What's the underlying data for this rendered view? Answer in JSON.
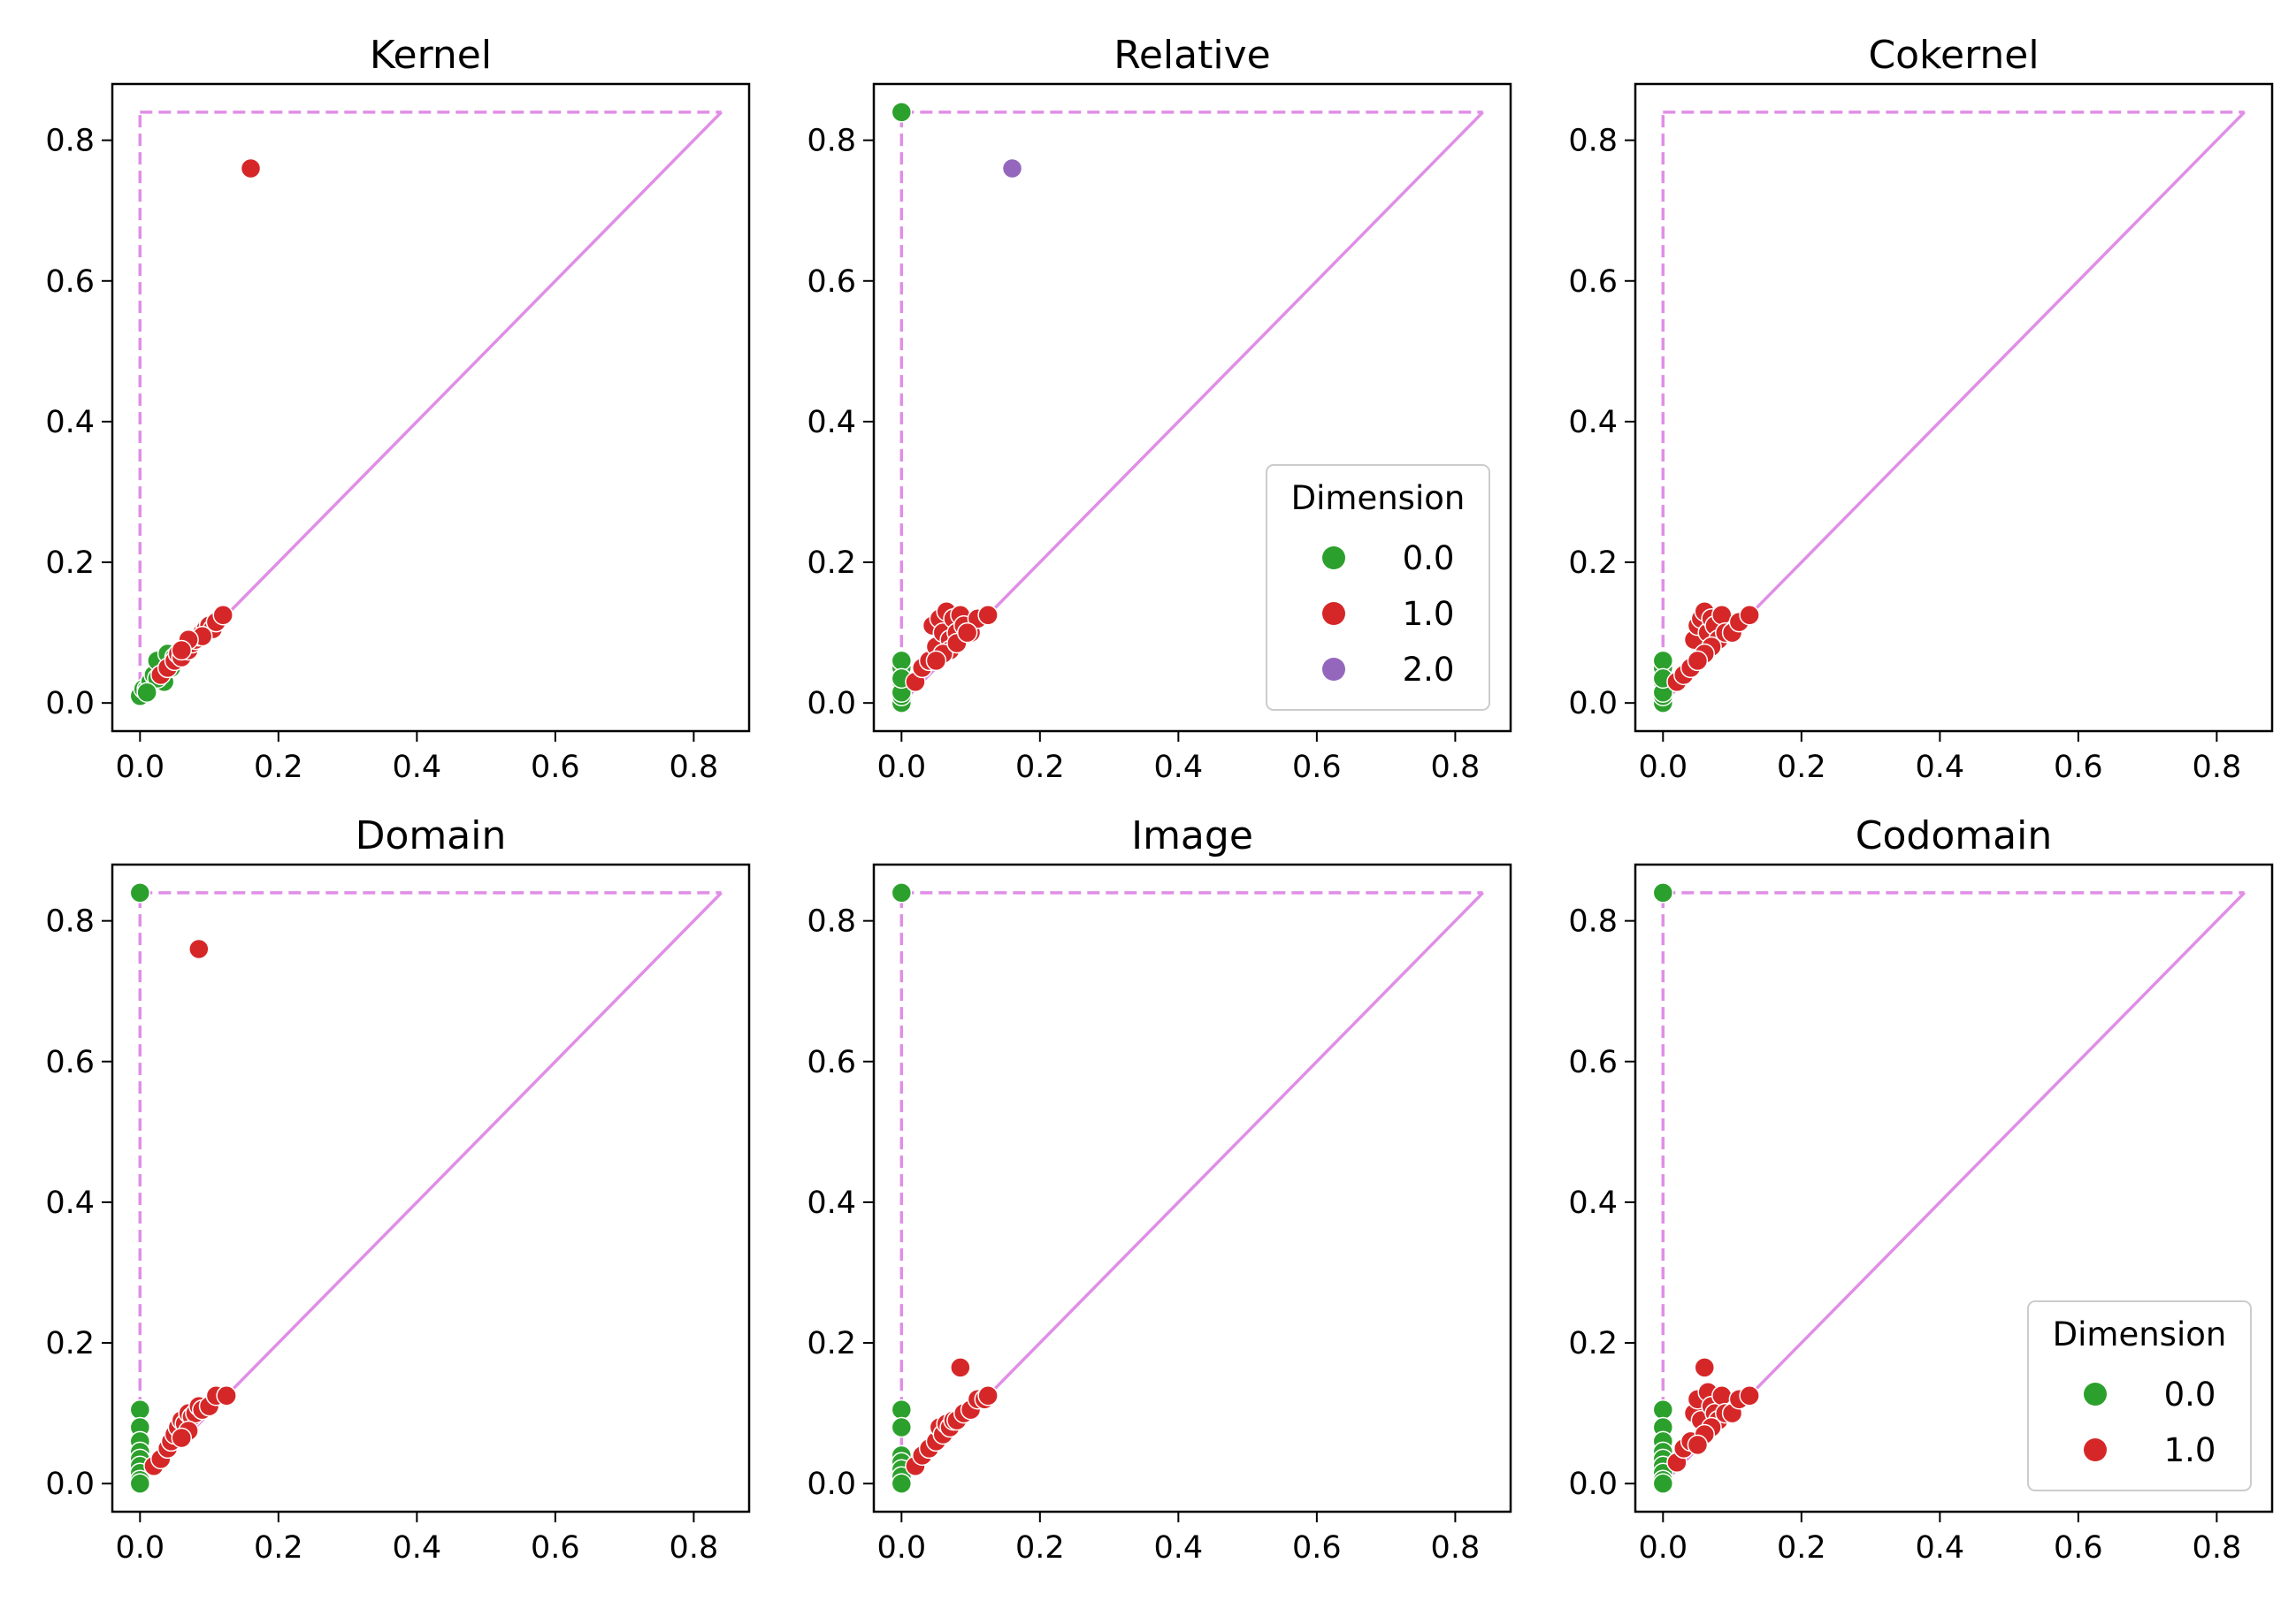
{
  "figure": {
    "colors": {
      "dim0": "#2ca02c",
      "dim1": "#d62728",
      "dim2": "#9467bd",
      "reference": "#e08ee6",
      "axis": "#000000"
    },
    "axis_limits": {
      "xlim": [
        -0.04,
        0.88
      ],
      "ylim": [
        -0.04,
        0.88
      ]
    }
  },
  "chart_data": [
    {
      "type": "scatter",
      "title": "Kernel",
      "xlabel": "",
      "ylabel": "",
      "x_ticks": [
        "0.0",
        "0.2",
        "0.4",
        "0.6",
        "0.8"
      ],
      "y_ticks": [
        "0.0",
        "0.2",
        "0.4",
        "0.6",
        "0.8"
      ],
      "infinity_line": 0.84,
      "legend": null,
      "series": [
        {
          "dimension": "0.0",
          "points": [
            [
              0.0,
              0.01
            ],
            [
              0.005,
              0.02
            ],
            [
              0.01,
              0.02
            ],
            [
              0.015,
              0.03
            ],
            [
              0.02,
              0.04
            ],
            [
              0.025,
              0.06
            ],
            [
              0.03,
              0.04
            ],
            [
              0.035,
              0.03
            ],
            [
              0.04,
              0.07
            ],
            [
              0.045,
              0.05
            ],
            [
              0.05,
              0.065
            ],
            [
              0.025,
              0.035
            ],
            [
              0.01,
              0.015
            ]
          ]
        },
        {
          "dimension": "1.0",
          "points": [
            [
              0.16,
              0.76
            ],
            [
              0.03,
              0.04
            ],
            [
              0.04,
              0.05
            ],
            [
              0.05,
              0.06
            ],
            [
              0.055,
              0.07
            ],
            [
              0.06,
              0.065
            ],
            [
              0.065,
              0.08
            ],
            [
              0.07,
              0.075
            ],
            [
              0.075,
              0.085
            ],
            [
              0.08,
              0.09
            ],
            [
              0.085,
              0.095
            ],
            [
              0.09,
              0.1
            ],
            [
              0.095,
              0.105
            ],
            [
              0.1,
              0.11
            ],
            [
              0.105,
              0.105
            ],
            [
              0.11,
              0.115
            ],
            [
              0.12,
              0.125
            ],
            [
              0.09,
              0.095
            ],
            [
              0.07,
              0.09
            ],
            [
              0.06,
              0.075
            ]
          ]
        }
      ]
    },
    {
      "type": "scatter",
      "title": "Relative",
      "xlabel": "",
      "ylabel": "",
      "x_ticks": [
        "0.0",
        "0.2",
        "0.4",
        "0.6",
        "0.8"
      ],
      "y_ticks": [
        "0.0",
        "0.2",
        "0.4",
        "0.6",
        "0.8"
      ],
      "infinity_line": 0.84,
      "legend": {
        "title": "Dimension",
        "entries": [
          "0.0",
          "1.0",
          "2.0"
        ],
        "position": "lower-right"
      },
      "series": [
        {
          "dimension": "0.0",
          "points": [
            [
              0.0,
              0.84
            ],
            [
              0.0,
              0.0
            ],
            [
              0.0,
              0.01
            ],
            [
              0.0,
              0.02
            ],
            [
              0.0,
              0.03
            ],
            [
              0.0,
              0.04
            ],
            [
              0.0,
              0.05
            ],
            [
              0.0,
              0.06
            ],
            [
              0.0,
              0.015
            ],
            [
              0.0,
              0.035
            ]
          ]
        },
        {
          "dimension": "1.0",
          "points": [
            [
              0.02,
              0.03
            ],
            [
              0.03,
              0.05
            ],
            [
              0.04,
              0.06
            ],
            [
              0.045,
              0.11
            ],
            [
              0.05,
              0.08
            ],
            [
              0.055,
              0.12
            ],
            [
              0.06,
              0.1
            ],
            [
              0.065,
              0.13
            ],
            [
              0.07,
              0.09
            ],
            [
              0.075,
              0.12
            ],
            [
              0.08,
              0.1
            ],
            [
              0.085,
              0.125
            ],
            [
              0.09,
              0.11
            ],
            [
              0.1,
              0.1
            ],
            [
              0.11,
              0.12
            ],
            [
              0.125,
              0.125
            ],
            [
              0.07,
              0.075
            ],
            [
              0.06,
              0.07
            ],
            [
              0.05,
              0.06
            ],
            [
              0.08,
              0.085
            ],
            [
              0.095,
              0.1
            ]
          ]
        },
        {
          "dimension": "2.0",
          "points": [
            [
              0.16,
              0.76
            ]
          ]
        }
      ]
    },
    {
      "type": "scatter",
      "title": "Cokernel",
      "xlabel": "",
      "ylabel": "",
      "x_ticks": [
        "0.0",
        "0.2",
        "0.4",
        "0.6",
        "0.8"
      ],
      "y_ticks": [
        "0.0",
        "0.2",
        "0.4",
        "0.6",
        "0.8"
      ],
      "infinity_line": 0.84,
      "legend": null,
      "series": [
        {
          "dimension": "0.0",
          "points": [
            [
              0.0,
              0.0
            ],
            [
              0.0,
              0.01
            ],
            [
              0.0,
              0.02
            ],
            [
              0.0,
              0.03
            ],
            [
              0.0,
              0.04
            ],
            [
              0.0,
              0.05
            ],
            [
              0.0,
              0.06
            ],
            [
              0.0,
              0.015
            ],
            [
              0.0,
              0.035
            ]
          ]
        },
        {
          "dimension": "1.0",
          "points": [
            [
              0.02,
              0.03
            ],
            [
              0.03,
              0.04
            ],
            [
              0.04,
              0.05
            ],
            [
              0.045,
              0.09
            ],
            [
              0.05,
              0.11
            ],
            [
              0.055,
              0.12
            ],
            [
              0.06,
              0.13
            ],
            [
              0.065,
              0.1
            ],
            [
              0.07,
              0.12
            ],
            [
              0.075,
              0.11
            ],
            [
              0.08,
              0.09
            ],
            [
              0.085,
              0.125
            ],
            [
              0.09,
              0.1
            ],
            [
              0.1,
              0.1
            ],
            [
              0.11,
              0.115
            ],
            [
              0.125,
              0.125
            ],
            [
              0.07,
              0.08
            ],
            [
              0.06,
              0.07
            ],
            [
              0.05,
              0.06
            ]
          ]
        }
      ]
    },
    {
      "type": "scatter",
      "title": "Domain",
      "xlabel": "",
      "ylabel": "",
      "x_ticks": [
        "0.0",
        "0.2",
        "0.4",
        "0.6",
        "0.8"
      ],
      "y_ticks": [
        "0.0",
        "0.2",
        "0.4",
        "0.6",
        "0.8"
      ],
      "infinity_line": 0.84,
      "legend": null,
      "series": [
        {
          "dimension": "0.0",
          "points": [
            [
              0.0,
              0.84
            ],
            [
              0.0,
              0.105
            ],
            [
              0.0,
              0.08
            ],
            [
              0.0,
              0.06
            ],
            [
              0.0,
              0.045
            ],
            [
              0.0,
              0.035
            ],
            [
              0.0,
              0.025
            ],
            [
              0.0,
              0.015
            ],
            [
              0.0,
              0.005
            ],
            [
              0.0,
              0.0
            ]
          ]
        },
        {
          "dimension": "1.0",
          "points": [
            [
              0.085,
              0.76
            ],
            [
              0.02,
              0.025
            ],
            [
              0.03,
              0.035
            ],
            [
              0.04,
              0.05
            ],
            [
              0.045,
              0.06
            ],
            [
              0.05,
              0.07
            ],
            [
              0.055,
              0.08
            ],
            [
              0.06,
              0.09
            ],
            [
              0.065,
              0.085
            ],
            [
              0.07,
              0.1
            ],
            [
              0.075,
              0.095
            ],
            [
              0.08,
              0.1
            ],
            [
              0.085,
              0.11
            ],
            [
              0.09,
              0.105
            ],
            [
              0.1,
              0.11
            ],
            [
              0.11,
              0.125
            ],
            [
              0.125,
              0.125
            ],
            [
              0.07,
              0.075
            ],
            [
              0.06,
              0.065
            ]
          ]
        }
      ]
    },
    {
      "type": "scatter",
      "title": "Image",
      "xlabel": "",
      "ylabel": "",
      "x_ticks": [
        "0.0",
        "0.2",
        "0.4",
        "0.6",
        "0.8"
      ],
      "y_ticks": [
        "0.0",
        "0.2",
        "0.4",
        "0.6",
        "0.8"
      ],
      "infinity_line": 0.84,
      "legend": null,
      "series": [
        {
          "dimension": "0.0",
          "points": [
            [
              0.0,
              0.84
            ],
            [
              0.0,
              0.105
            ],
            [
              0.0,
              0.08
            ],
            [
              0.0,
              0.04
            ],
            [
              0.0,
              0.03
            ],
            [
              0.0,
              0.02
            ],
            [
              0.0,
              0.01
            ],
            [
              0.0,
              0.0
            ]
          ]
        },
        {
          "dimension": "1.0",
          "points": [
            [
              0.085,
              0.165
            ],
            [
              0.02,
              0.025
            ],
            [
              0.03,
              0.04
            ],
            [
              0.04,
              0.05
            ],
            [
              0.05,
              0.06
            ],
            [
              0.055,
              0.08
            ],
            [
              0.06,
              0.07
            ],
            [
              0.065,
              0.085
            ],
            [
              0.07,
              0.08
            ],
            [
              0.075,
              0.09
            ],
            [
              0.08,
              0.09
            ],
            [
              0.09,
              0.1
            ],
            [
              0.1,
              0.105
            ],
            [
              0.11,
              0.12
            ],
            [
              0.12,
              0.12
            ],
            [
              0.125,
              0.125
            ]
          ]
        }
      ]
    },
    {
      "type": "scatter",
      "title": "Codomain",
      "xlabel": "",
      "ylabel": "",
      "x_ticks": [
        "0.0",
        "0.2",
        "0.4",
        "0.6",
        "0.8"
      ],
      "y_ticks": [
        "0.0",
        "0.2",
        "0.4",
        "0.6",
        "0.8"
      ],
      "infinity_line": 0.84,
      "legend": {
        "title": "Dimension",
        "entries": [
          "0.0",
          "1.0"
        ],
        "position": "lower-right"
      },
      "series": [
        {
          "dimension": "0.0",
          "points": [
            [
              0.0,
              0.84
            ],
            [
              0.0,
              0.105
            ],
            [
              0.0,
              0.08
            ],
            [
              0.0,
              0.06
            ],
            [
              0.0,
              0.045
            ],
            [
              0.0,
              0.035
            ],
            [
              0.0,
              0.025
            ],
            [
              0.0,
              0.015
            ],
            [
              0.0,
              0.005
            ],
            [
              0.0,
              0.0
            ]
          ]
        },
        {
          "dimension": "1.0",
          "points": [
            [
              0.02,
              0.03
            ],
            [
              0.03,
              0.05
            ],
            [
              0.04,
              0.06
            ],
            [
              0.045,
              0.1
            ],
            [
              0.05,
              0.12
            ],
            [
              0.055,
              0.09
            ],
            [
              0.06,
              0.165
            ],
            [
              0.065,
              0.13
            ],
            [
              0.07,
              0.11
            ],
            [
              0.075,
              0.1
            ],
            [
              0.08,
              0.09
            ],
            [
              0.085,
              0.125
            ],
            [
              0.09,
              0.1
            ],
            [
              0.1,
              0.1
            ],
            [
              0.11,
              0.12
            ],
            [
              0.125,
              0.125
            ],
            [
              0.07,
              0.08
            ],
            [
              0.06,
              0.07
            ],
            [
              0.05,
              0.055
            ]
          ]
        }
      ]
    }
  ]
}
